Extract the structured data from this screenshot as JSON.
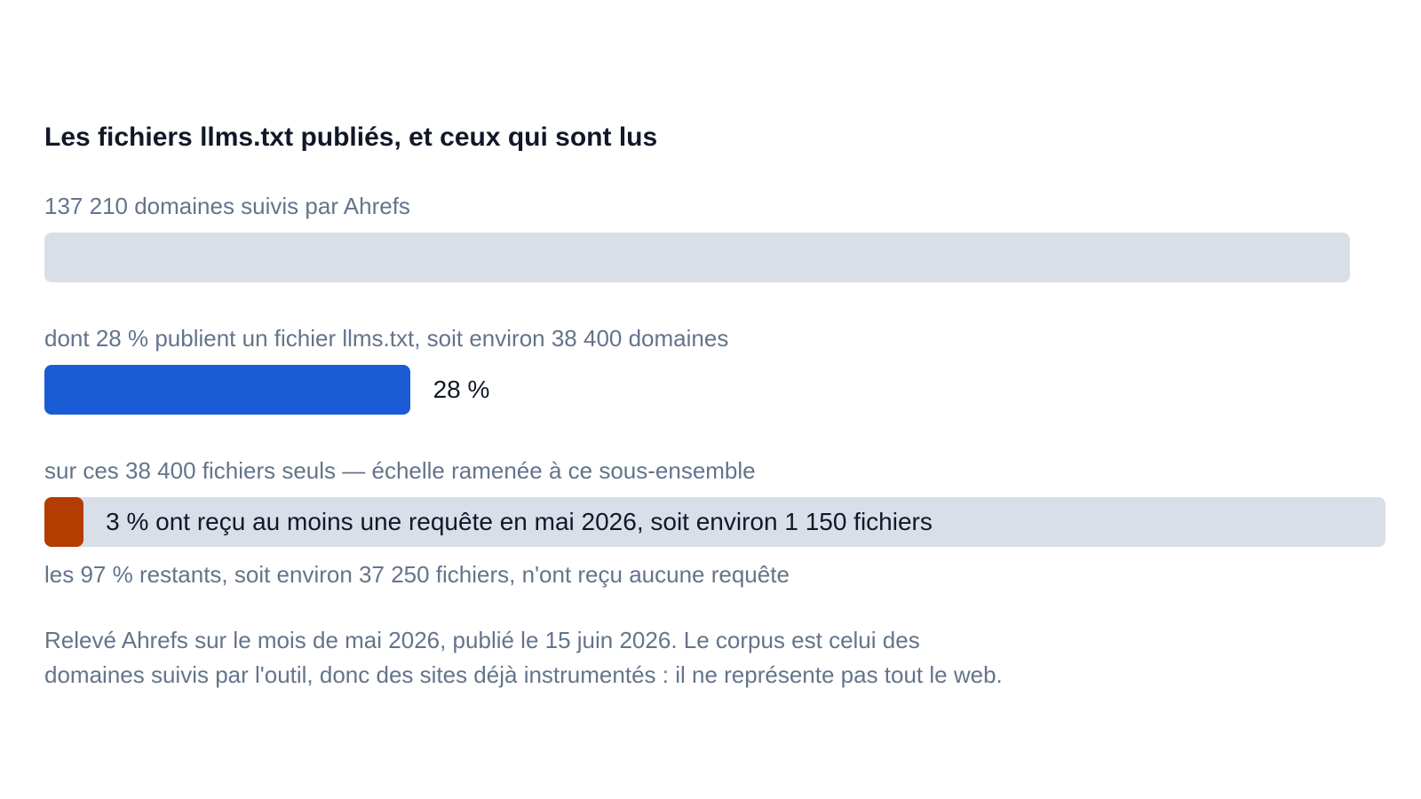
{
  "title": "Les fichiers llms.txt publiés, et ceux qui sont lus",
  "colors": {
    "track": "#d9dfe8",
    "published": "#1a5cd6",
    "requested": "#b33c00",
    "caption": "#64748b",
    "text": "#111827"
  },
  "chart_data": [
    {
      "type": "bar",
      "caption": "137 210 domaines suivis par Ahrefs",
      "values": [
        137210
      ],
      "fraction": 1.0
    },
    {
      "type": "bar",
      "caption": "dont 28 % publient un fichier llms.txt, soit environ 38 400 domaines",
      "values": [
        38400
      ],
      "fraction": 0.28,
      "label": "28 %"
    },
    {
      "type": "bar",
      "caption": "sur ces 38 400 fichiers seuls — échelle ramenée à ce sous-ensemble",
      "values": [
        1150
      ],
      "fraction": 0.03,
      "label": "3 % ont reçu au moins une requête en mai 2026, soit environ 1 150 fichiers",
      "footnote": "les 97 % restants, soit environ 37 250 fichiers, n'ont reçu aucune requête"
    }
  ],
  "note_line1": "Relevé Ahrefs sur le mois de mai 2026, publié le 15 juin 2026. Le corpus est celui des",
  "note_line2": "domaines suivis par l'outil, donc des sites déjà instrumentés : il ne représente pas tout le web."
}
